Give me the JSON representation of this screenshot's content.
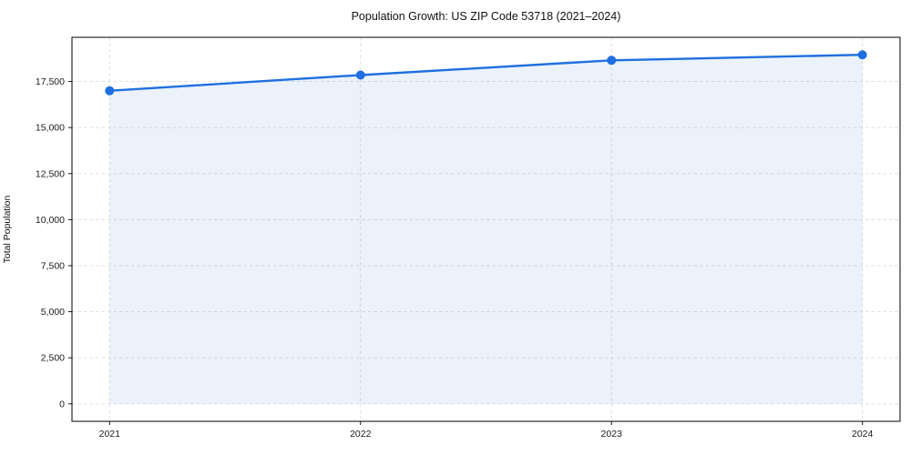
{
  "chart_data": {
    "type": "area",
    "title": "Population Growth: US ZIP Code 53718 (2021–2024)",
    "xlabel": "",
    "ylabel": "Total Population",
    "x": [
      2021,
      2022,
      2023,
      2024
    ],
    "series": [
      {
        "name": "Total Population",
        "values": [
          17000,
          17850,
          18650,
          18950
        ]
      }
    ],
    "baseline": 0,
    "xticks": {
      "values": [
        2021,
        2022,
        2023,
        2024
      ],
      "labels": [
        "2021",
        "2022",
        "2023",
        "2024"
      ]
    },
    "yticks": {
      "values": [
        0,
        2500,
        5000,
        7500,
        10000,
        12500,
        15000,
        17500
      ],
      "labels": [
        "0",
        "2,500",
        "5,000",
        "7,500",
        "10,000",
        "12,500",
        "15,000",
        "17,500"
      ]
    },
    "xlim": [
      2020.85,
      2024.15
    ],
    "ylim": [
      -950,
      19900
    ],
    "grid": true,
    "grid_style": "dashed",
    "legend": "none",
    "marker": "circle",
    "colors": {
      "line": "#1f6fe0",
      "marker": "#1f6fe0",
      "fill": "rgba(31,111,224,0.09)",
      "grid": "#dcdcdc",
      "spine": "#000000",
      "tick": "#000000",
      "tick_label": "#1a1a1a",
      "title": "#111111",
      "background": "#ffffff"
    }
  }
}
